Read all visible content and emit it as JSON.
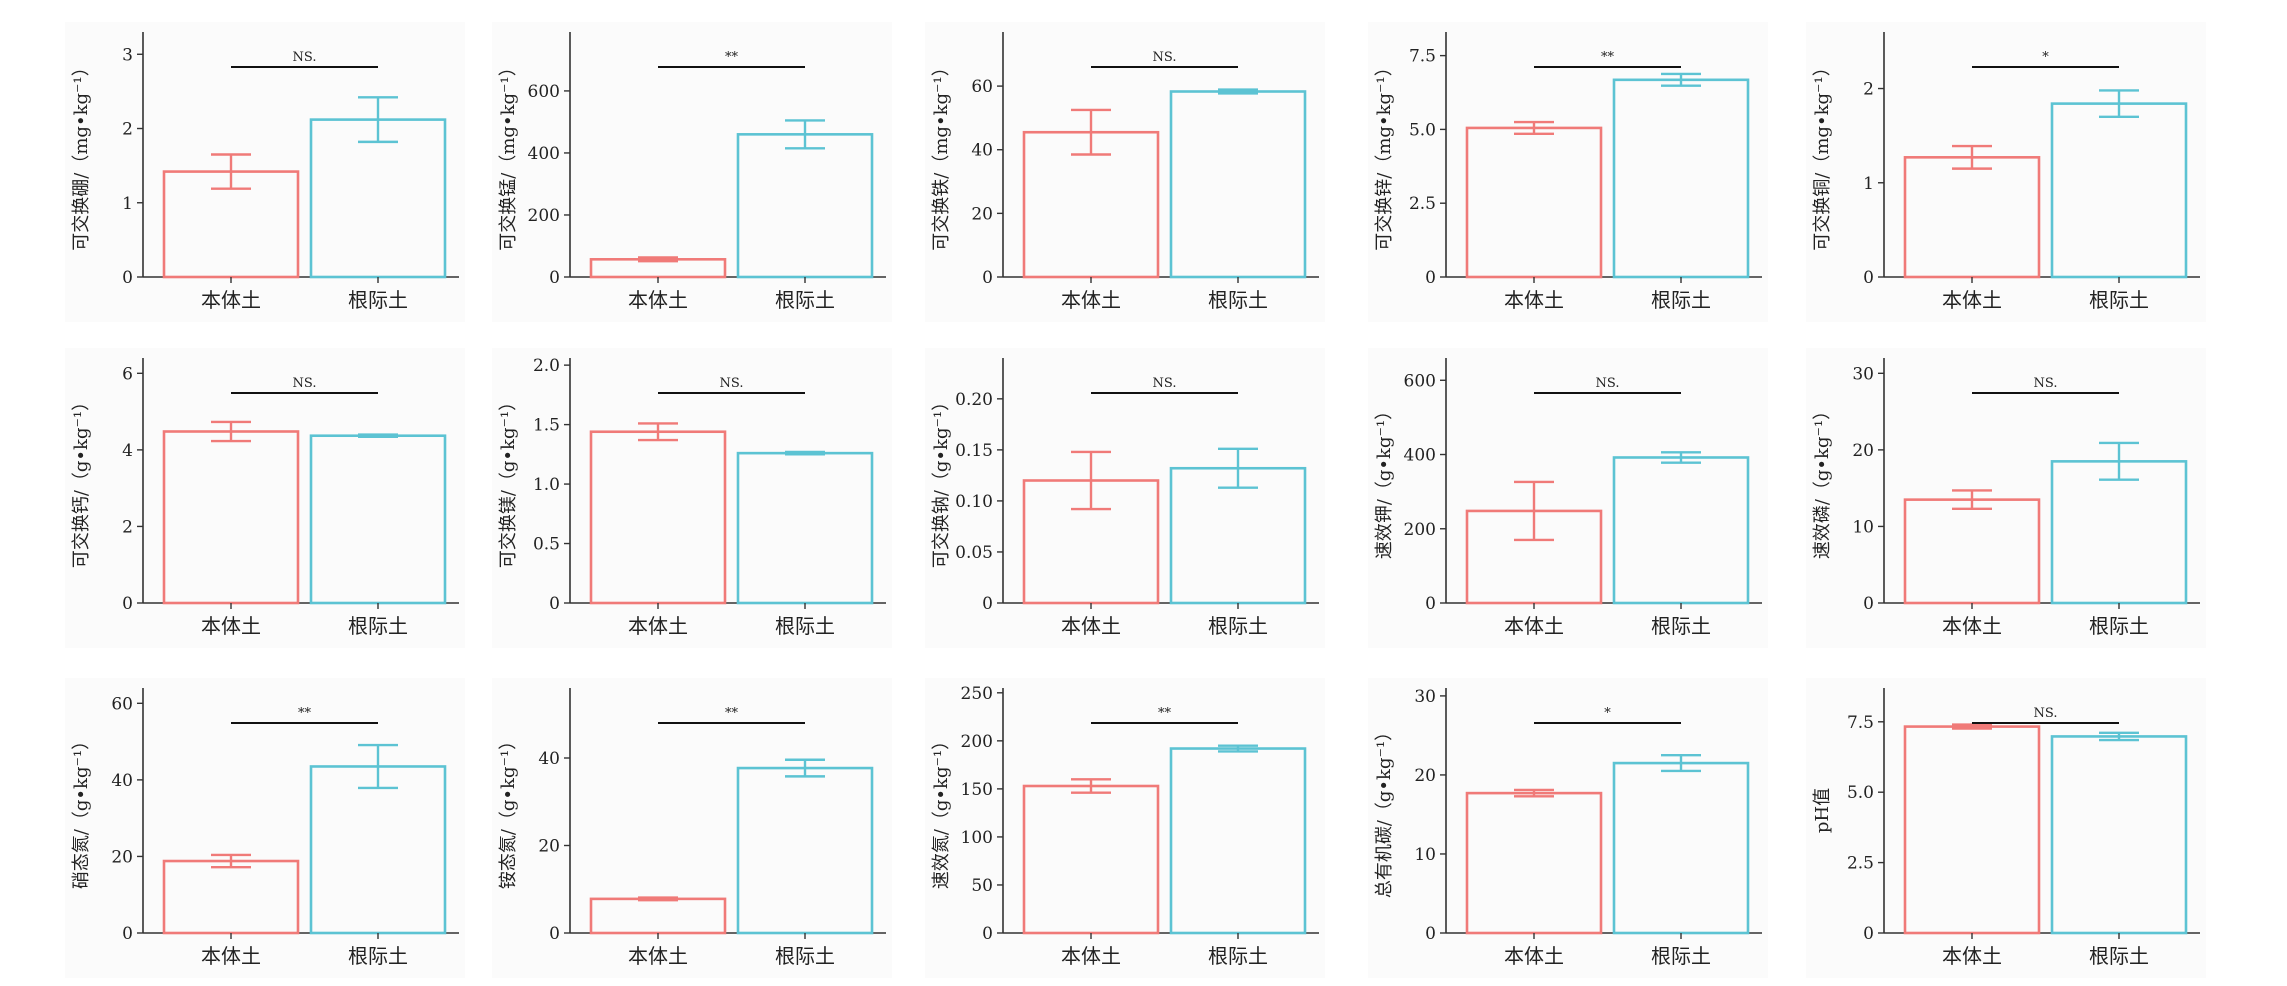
{
  "colors": {
    "bulk": "#f07a78",
    "rhizo": "#5cc3d3",
    "sig": "#111111",
    "axis": "#333333"
  },
  "chart_data": [
    {
      "type": "bar",
      "ylabel": "可交换硼/（mg•kg⁻¹）",
      "categories": [
        "本体土",
        "根际土"
      ],
      "values": [
        1.42,
        2.12
      ],
      "errors": [
        0.23,
        0.3
      ],
      "ylim": [
        0,
        3.3
      ],
      "yticks": [
        0,
        1,
        2,
        3
      ],
      "yticklabels": [
        "0",
        "1",
        "2",
        "3"
      ],
      "significance": "NS."
    },
    {
      "type": "bar",
      "ylabel": "可交换锰/（mg•kg⁻¹）",
      "categories": [
        "本体土",
        "根际土"
      ],
      "values": [
        57,
        460
      ],
      "errors": [
        6,
        45
      ],
      "ylim": [
        0,
        790
      ],
      "yticks": [
        0,
        200,
        400,
        600
      ],
      "yticklabels": [
        "0",
        "200",
        "400",
        "600"
      ],
      "significance": "**"
    },
    {
      "type": "bar",
      "ylabel": "可交换铁/（mg•kg⁻¹）",
      "categories": [
        "本体土",
        "根际土"
      ],
      "values": [
        45.5,
        58.3
      ],
      "errors": [
        7,
        0.6
      ],
      "ylim": [
        0,
        77
      ],
      "yticks": [
        0,
        20,
        40,
        60
      ],
      "yticklabels": [
        "0",
        "20",
        "40",
        "60"
      ],
      "significance": "NS."
    },
    {
      "type": "bar",
      "ylabel": "可交换锌/（mg•kg⁻¹）",
      "categories": [
        "本体土",
        "根际土"
      ],
      "values": [
        5.05,
        6.68
      ],
      "errors": [
        0.2,
        0.2
      ],
      "ylim": [
        0,
        8.3
      ],
      "yticks": [
        0,
        2.5,
        5,
        7.5
      ],
      "yticklabels": [
        "0",
        "2.5",
        "5.0",
        "7.5"
      ],
      "significance": "**"
    },
    {
      "type": "bar",
      "ylabel": "可交换铜/（mg•kg⁻¹）",
      "categories": [
        "本体土",
        "根际土"
      ],
      "values": [
        1.27,
        1.84
      ],
      "errors": [
        0.12,
        0.14
      ],
      "ylim": [
        0,
        2.6
      ],
      "yticks": [
        0,
        1,
        2
      ],
      "yticklabels": [
        "0",
        "1",
        "2"
      ],
      "significance": "*"
    },
    {
      "type": "bar",
      "ylabel": "可交换钙/（g•kg⁻¹）",
      "categories": [
        "本体土",
        "根际土"
      ],
      "values": [
        4.48,
        4.37
      ],
      "errors": [
        0.25,
        0.03
      ],
      "ylim": [
        0,
        6.4
      ],
      "yticks": [
        0,
        2,
        4,
        6
      ],
      "yticklabels": [
        "0",
        "2",
        "4",
        "6"
      ],
      "significance": "NS."
    },
    {
      "type": "bar",
      "ylabel": "可交换镁/（g•kg⁻¹）",
      "categories": [
        "本体土",
        "根际土"
      ],
      "values": [
        1.44,
        1.26
      ],
      "errors": [
        0.07,
        0.01
      ],
      "ylim": [
        0,
        2.06
      ],
      "yticks": [
        0,
        0.5,
        1,
        1.5,
        2
      ],
      "yticklabels": [
        "0",
        "0.5",
        "1.0",
        "1.5",
        "2.0"
      ],
      "significance": "NS."
    },
    {
      "type": "bar",
      "ylabel": "可交换钠/（g•kg⁻¹）",
      "categories": [
        "本体土",
        "根际土"
      ],
      "values": [
        0.12,
        0.132
      ],
      "errors": [
        0.028,
        0.019
      ],
      "ylim": [
        0,
        0.24
      ],
      "yticks": [
        0,
        0.05,
        0.1,
        0.15,
        0.2
      ],
      "yticklabels": [
        "0",
        "0.05",
        "0.10",
        "0.15",
        "0.20"
      ],
      "significance": "NS."
    },
    {
      "type": "bar",
      "ylabel": "速效钾/（g•kg⁻¹）",
      "categories": [
        "本体土",
        "根际土"
      ],
      "values": [
        248,
        392
      ],
      "errors": [
        78,
        14
      ],
      "ylim": [
        0,
        660
      ],
      "yticks": [
        0,
        200,
        400,
        600
      ],
      "yticklabels": [
        "0",
        "200",
        "400",
        "600"
      ],
      "significance": "NS."
    },
    {
      "type": "bar",
      "ylabel": "速效磷/（g•kg⁻¹）",
      "categories": [
        "本体土",
        "根际土"
      ],
      "values": [
        13.5,
        18.5
      ],
      "errors": [
        1.2,
        2.4
      ],
      "ylim": [
        0,
        32
      ],
      "yticks": [
        0,
        10,
        20,
        30
      ],
      "yticklabels": [
        "0",
        "10",
        "20",
        "30"
      ],
      "significance": "NS."
    },
    {
      "type": "bar",
      "ylabel": "硝态氮/（g•kg⁻¹）",
      "categories": [
        "本体土",
        "根际土"
      ],
      "values": [
        18.8,
        43.5
      ],
      "errors": [
        1.6,
        5.6
      ],
      "ylim": [
        0,
        64
      ],
      "yticks": [
        0,
        20,
        40,
        60
      ],
      "yticklabels": [
        "0",
        "20",
        "40",
        "60"
      ],
      "significance": "**"
    },
    {
      "type": "bar",
      "ylabel": "铵态氮/（g•kg⁻¹）",
      "categories": [
        "本体土",
        "根际土"
      ],
      "values": [
        7.8,
        37.7
      ],
      "errors": [
        0.3,
        1.9
      ],
      "ylim": [
        0,
        56
      ],
      "yticks": [
        0,
        20,
        40
      ],
      "yticklabels": [
        "0",
        "20",
        "40"
      ],
      "significance": "**"
    },
    {
      "type": "bar",
      "ylabel": "速效氮/（g•kg⁻¹）",
      "categories": [
        "本体土",
        "根际土"
      ],
      "values": [
        153,
        192
      ],
      "errors": [
        7,
        3
      ],
      "ylim": [
        0,
        255
      ],
      "yticks": [
        0,
        50,
        100,
        150,
        200,
        250
      ],
      "yticklabels": [
        "0",
        "50",
        "100",
        "150",
        "200",
        "250"
      ],
      "significance": "**"
    },
    {
      "type": "bar",
      "ylabel": "总有机碳/（g•kg⁻¹）",
      "categories": [
        "本体土",
        "根际土"
      ],
      "values": [
        17.7,
        21.5
      ],
      "errors": [
        0.4,
        1.0
      ],
      "ylim": [
        0,
        31
      ],
      "yticks": [
        0,
        10,
        20,
        30
      ],
      "yticklabels": [
        "0",
        "10",
        "20",
        "30"
      ],
      "significance": "*"
    },
    {
      "type": "bar",
      "ylabel": "pH值",
      "categories": [
        "本体土",
        "根际土"
      ],
      "values": [
        7.33,
        6.98
      ],
      "errors": [
        0.07,
        0.13
      ],
      "ylim": [
        0,
        8.7
      ],
      "yticks": [
        0,
        2.5,
        5,
        7.5
      ],
      "yticklabels": [
        "0",
        "2.5",
        "5.0",
        "7.5"
      ],
      "significance": "NS."
    }
  ]
}
